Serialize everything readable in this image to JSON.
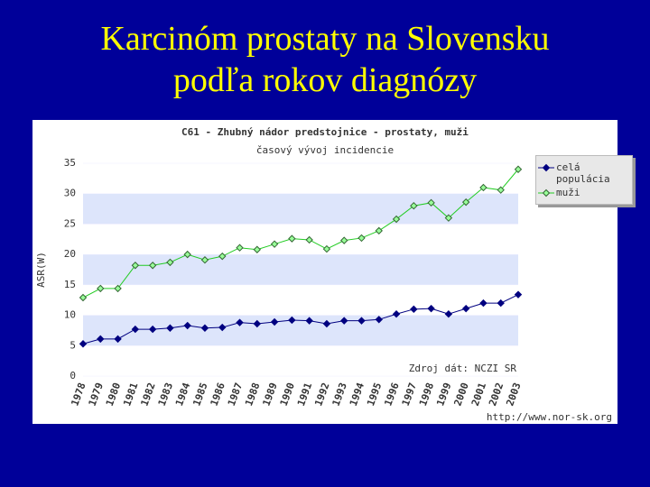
{
  "slide_title": [
    "Karcinóm prostaty na Slovensku",
    "podľa rokov diagnózy"
  ],
  "chart_data": {
    "type": "line",
    "title": "C61 - Zhubný nádor predstojnice - prostaty, muži",
    "subtitle": "časový vývoj incidencie",
    "y_label": "ASR(W)",
    "source": "Zdroj dát: NCZI SR",
    "url": "http://www.nor-sk.org",
    "categories": [
      "1978",
      "1979",
      "1980",
      "1981",
      "1982",
      "1983",
      "1984",
      "1985",
      "1986",
      "1987",
      "1988",
      "1989",
      "1990",
      "1991",
      "1992",
      "1993",
      "1994",
      "1995",
      "1996",
      "1997",
      "1998",
      "1999",
      "2000",
      "2001",
      "2002",
      "2003"
    ],
    "series": [
      {
        "name": "celá populácia",
        "color": "#000080",
        "values": [
          5.3,
          6.1,
          6.1,
          7.7,
          7.7,
          7.9,
          8.3,
          7.9,
          8.0,
          8.8,
          8.6,
          8.9,
          9.2,
          9.1,
          8.6,
          9.1,
          9.1,
          9.3,
          10.2,
          11.0,
          11.1,
          10.2,
          11.1,
          12.0,
          12.0,
          13.4
        ]
      },
      {
        "name": "muži",
        "color": "#22cc22",
        "values": [
          12.9,
          14.4,
          14.4,
          18.2,
          18.2,
          18.7,
          20.0,
          19.1,
          19.7,
          21.1,
          20.8,
          21.7,
          22.6,
          22.4,
          20.9,
          22.3,
          22.7,
          23.9,
          25.8,
          28.0,
          28.5,
          26.0,
          28.6,
          31.0,
          30.6,
          34.0
        ]
      }
    ],
    "ylim": [
      0,
      35
    ],
    "yticks": [
      0,
      5,
      10,
      15,
      20,
      25,
      30,
      35
    ],
    "grid": true,
    "legend": "right"
  }
}
